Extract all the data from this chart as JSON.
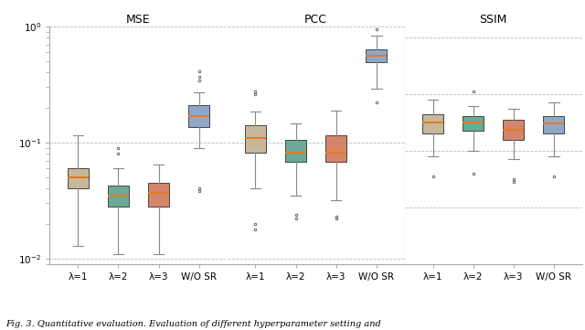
{
  "title_mse": "MSE",
  "title_pcc": "PCC",
  "title_ssim": "SSIM",
  "xlabels": [
    "λ=1",
    "λ=2",
    "λ=3",
    "W/O SR"
  ],
  "colors": [
    "#c8b89a",
    "#6aaa96",
    "#d4856a",
    "#8fa8c8"
  ],
  "mse": {
    "lambda1": {
      "q1": 0.04,
      "median": 0.05,
      "q3": 0.06,
      "whislo": 0.013,
      "whishi": 0.115,
      "fliers_low": [],
      "fliers_high": []
    },
    "lambda2": {
      "q1": 0.028,
      "median": 0.035,
      "q3": 0.043,
      "whislo": 0.011,
      "whishi": 0.06,
      "fliers_low": [],
      "fliers_high": [
        0.08,
        0.09
      ]
    },
    "lambda3": {
      "q1": 0.028,
      "median": 0.037,
      "q3": 0.045,
      "whislo": 0.011,
      "whishi": 0.065,
      "fliers_low": [],
      "fliers_high": []
    },
    "wosr": {
      "q1": 0.135,
      "median": 0.168,
      "q3": 0.21,
      "whislo": 0.09,
      "whishi": 0.27,
      "fliers_low": [
        0.038,
        0.04
      ],
      "fliers_high": [
        0.34,
        0.37,
        0.41
      ]
    }
  },
  "pcc": {
    "lambda1": {
      "q1": 0.082,
      "median": 0.11,
      "q3": 0.14,
      "whislo": 0.04,
      "whishi": 0.185,
      "fliers_low": [
        0.02,
        0.018
      ],
      "fliers_high": [
        0.26,
        0.275
      ]
    },
    "lambda2": {
      "q1": 0.068,
      "median": 0.082,
      "q3": 0.105,
      "whislo": 0.035,
      "whishi": 0.145,
      "fliers_low": [
        0.022,
        0.024
      ],
      "fliers_high": []
    },
    "lambda3": {
      "q1": 0.068,
      "median": 0.082,
      "q3": 0.115,
      "whislo": 0.032,
      "whishi": 0.19,
      "fliers_low": [
        0.022,
        0.023
      ],
      "fliers_high": []
    },
    "wosr": {
      "q1": 0.49,
      "median": 0.555,
      "q3": 0.63,
      "whislo": 0.29,
      "whishi": 0.83,
      "fliers_low": [
        0.22
      ],
      "fliers_high": [
        0.95
      ]
    }
  },
  "ssim": {
    "lambda1": {
      "q1": 0.83,
      "median": 0.85,
      "q3": 0.865,
      "whislo": 0.79,
      "whishi": 0.89,
      "fliers_low": [
        0.755
      ],
      "fliers_high": []
    },
    "lambda2": {
      "q1": 0.835,
      "median": 0.85,
      "q3": 0.862,
      "whislo": 0.8,
      "whishi": 0.88,
      "fliers_low": [
        0.76
      ],
      "fliers_high": [
        0.905
      ]
    },
    "lambda3": {
      "q1": 0.82,
      "median": 0.838,
      "q3": 0.855,
      "whislo": 0.785,
      "whishi": 0.875,
      "fliers_low": [
        0.745,
        0.75
      ],
      "fliers_high": []
    },
    "wosr": {
      "q1": 0.83,
      "median": 0.848,
      "q3": 0.862,
      "whislo": 0.79,
      "whishi": 0.885,
      "fliers_low": [
        0.755
      ],
      "fliers_high": []
    }
  },
  "background": "#ffffff",
  "grid_color": "#bbbbbb",
  "median_color": "#e07b2a",
  "box_edge_color": "#444444",
  "whisker_color": "#888888",
  "flier_color": "#666666",
  "fig_caption": "Fig. 3. Quantitative evaluation. Evaluation of different hyperparameter setting and"
}
